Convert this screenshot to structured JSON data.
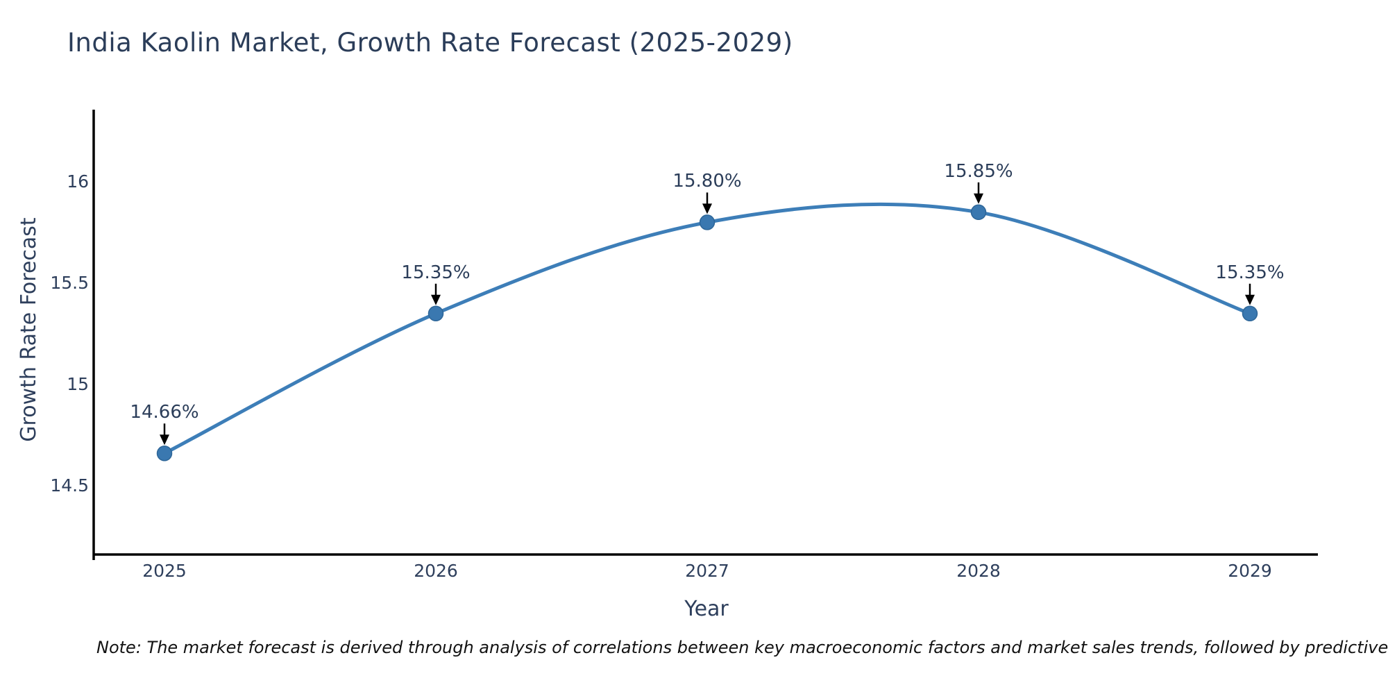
{
  "title": "India Kaolin Market, Growth Rate Forecast (2025-2029)",
  "note": "Note: The market forecast is derived through analysis of correlations between key macroeconomic factors and market sales trends, followed by predictive modeling to project future sal",
  "colors": {
    "line": "#3d7eb8",
    "marker_fill": "#3a78b0",
    "marker_edge": "#2e6698",
    "arrow": "#000000",
    "axis": "#000000",
    "text": "#2e3f5c",
    "title_text": "#2b3d59"
  },
  "chart_data": {
    "type": "line",
    "title": "India Kaolin Market, Growth Rate Forecast (2025-2029)",
    "xlabel": "Year",
    "ylabel": "Growth Rate Forecast",
    "x": [
      2025,
      2026,
      2027,
      2028,
      2029
    ],
    "y": [
      14.66,
      15.35,
      15.8,
      15.85,
      15.35
    ],
    "point_labels": [
      "14.66%",
      "15.35%",
      "15.80%",
      "15.85%",
      "15.35%"
    ],
    "xtick_labels": [
      "2025",
      "2026",
      "2027",
      "2028",
      "2029"
    ],
    "ytick_values": [
      16,
      15.5,
      15,
      14.5
    ],
    "ytick_labels": [
      "16",
      "15.5",
      "15",
      "14.5"
    ],
    "ylim": [
      14.16,
      16.36
    ],
    "line_shape": "spline",
    "markers": true,
    "grid": false,
    "legend": "none",
    "annotations": "black down-arrows from each value label to its data point"
  }
}
